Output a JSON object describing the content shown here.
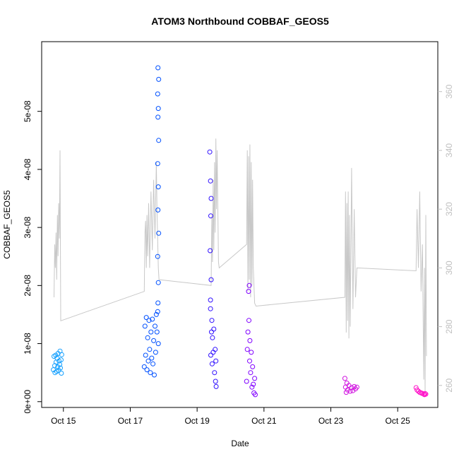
{
  "chart_data": {
    "type": "scatter",
    "title": "ATOM3 Northbound COBBAF_GEOS5",
    "xlabel": "Date",
    "ylabel": "COBBAF_GEOS5",
    "x_ticks": [
      {
        "value": 15,
        "label": "Oct 15"
      },
      {
        "value": 17,
        "label": "Oct 17"
      },
      {
        "value": 19,
        "label": "Oct 19"
      },
      {
        "value": 21,
        "label": "Oct 21"
      },
      {
        "value": 23,
        "label": "Oct 23"
      },
      {
        "value": 25,
        "label": "Oct 25"
      }
    ],
    "xlim": [
      14.35,
      26.2
    ],
    "y_ticks": [
      {
        "value": 0,
        "label": "0e+00"
      },
      {
        "value": 1e-08,
        "label": "1e-08"
      },
      {
        "value": 2e-08,
        "label": "2e-08"
      },
      {
        "value": 3e-08,
        "label": "3e-08"
      },
      {
        "value": 4e-08,
        "label": "4e-08"
      },
      {
        "value": 5e-08,
        "label": "5e-08"
      }
    ],
    "ylim": [
      -1e-09,
      6.2e-08
    ],
    "y2_ticks": [
      {
        "value": 260,
        "label": "260"
      },
      {
        "value": 280,
        "label": "280"
      },
      {
        "value": 300,
        "label": "300"
      },
      {
        "value": 320,
        "label": "320"
      },
      {
        "value": 340,
        "label": "340"
      },
      {
        "value": 360,
        "label": "360"
      }
    ],
    "y2lim": [
      252.5,
      377
    ],
    "grid": false,
    "legend": "none",
    "secondary_line_color": "#c8c8c8",
    "secondary_series": [
      [
        14.72,
        290
      ],
      [
        14.74,
        308
      ],
      [
        14.76,
        300
      ],
      [
        14.78,
        312
      ],
      [
        14.8,
        296
      ],
      [
        14.82,
        318
      ],
      [
        14.84,
        304
      ],
      [
        14.86,
        322
      ],
      [
        14.88,
        310
      ],
      [
        14.9,
        340
      ],
      [
        14.92,
        282
      ],
      [
        17.42,
        292
      ],
      [
        17.44,
        312
      ],
      [
        17.46,
        316
      ],
      [
        17.48,
        300
      ],
      [
        17.5,
        318
      ],
      [
        17.52,
        304
      ],
      [
        17.55,
        322
      ],
      [
        17.58,
        300
      ],
      [
        17.62,
        326
      ],
      [
        17.66,
        306
      ],
      [
        17.7,
        330
      ],
      [
        17.74,
        310
      ],
      [
        17.78,
        336
      ],
      [
        17.8,
        320
      ],
      [
        17.84,
        300
      ],
      [
        17.86,
        296
      ],
      [
        19.42,
        294
      ],
      [
        19.44,
        318
      ],
      [
        19.46,
        302
      ],
      [
        19.48,
        330
      ],
      [
        19.5,
        306
      ],
      [
        19.52,
        336
      ],
      [
        19.54,
        312
      ],
      [
        19.56,
        344
      ],
      [
        19.58,
        320
      ],
      [
        19.6,
        340
      ],
      [
        19.64,
        302
      ],
      [
        19.66,
        300
      ],
      [
        20.48,
        308
      ],
      [
        20.5,
        340
      ],
      [
        20.52,
        292
      ],
      [
        20.54,
        338
      ],
      [
        20.56,
        296
      ],
      [
        20.58,
        342
      ],
      [
        20.6,
        290
      ],
      [
        20.62,
        336
      ],
      [
        20.64,
        294
      ],
      [
        20.66,
        330
      ],
      [
        20.68,
        300
      ],
      [
        20.72,
        288
      ],
      [
        20.76,
        287
      ],
      [
        23.42,
        290
      ],
      [
        23.44,
        326
      ],
      [
        23.46,
        278
      ],
      [
        23.48,
        322
      ],
      [
        23.5,
        282
      ],
      [
        23.52,
        326
      ],
      [
        23.54,
        276
      ],
      [
        23.56,
        318
      ],
      [
        23.58,
        280
      ],
      [
        23.62,
        334
      ],
      [
        23.66,
        286
      ],
      [
        23.7,
        320
      ],
      [
        23.74,
        290
      ],
      [
        23.78,
        300
      ],
      [
        25.55,
        299
      ],
      [
        25.58,
        320
      ],
      [
        25.62,
        300
      ],
      [
        25.66,
        326
      ],
      [
        25.7,
        292
      ],
      [
        25.74,
        308
      ],
      [
        25.78,
        262
      ],
      [
        25.8,
        300
      ],
      [
        25.82,
        258
      ],
      [
        25.84,
        318
      ],
      [
        25.86,
        270
      ]
    ],
    "series": [
      {
        "color": "#14a0ff",
        "points": [
          [
            14.7,
            5.5e-09
          ],
          [
            14.72,
            7.8e-09
          ],
          [
            14.74,
            6.2e-09
          ],
          [
            14.75,
            5e-09
          ],
          [
            14.77,
            8e-09
          ],
          [
            14.78,
            6.8e-09
          ],
          [
            14.8,
            5.2e-09
          ],
          [
            14.81,
            7.5e-09
          ],
          [
            14.83,
            6e-09
          ],
          [
            14.84,
            8.3e-09
          ],
          [
            14.86,
            5.4e-09
          ],
          [
            14.87,
            7e-09
          ],
          [
            14.89,
            6.4e-09
          ],
          [
            14.9,
            8.7e-09
          ],
          [
            14.91,
            5.8e-09
          ],
          [
            14.93,
            7.2e-09
          ],
          [
            14.94,
            4.9e-09
          ],
          [
            14.95,
            8.1e-09
          ]
        ]
      },
      {
        "color": "#0050ff",
        "points": [
          [
            17.42,
            6e-09
          ],
          [
            17.44,
            1.3e-08
          ],
          [
            17.46,
            8e-09
          ],
          [
            17.48,
            1.45e-08
          ],
          [
            17.5,
            5.5e-09
          ],
          [
            17.52,
            1.1e-08
          ],
          [
            17.54,
            7e-09
          ],
          [
            17.56,
            1.4e-08
          ],
          [
            17.58,
            9e-09
          ],
          [
            17.6,
            5e-09
          ],
          [
            17.62,
            1.2e-08
          ],
          [
            17.64,
            7.5e-09
          ],
          [
            17.66,
            1.42e-08
          ],
          [
            17.68,
            6.5e-09
          ],
          [
            17.7,
            1.05e-08
          ],
          [
            17.72,
            4.6e-09
          ],
          [
            17.74,
            1.3e-08
          ],
          [
            17.76,
            8.5e-09
          ],
          [
            17.78,
            1.5e-08
          ],
          [
            17.8,
            1.2e-08
          ],
          [
            17.82,
            1.55e-08
          ],
          [
            17.84,
            1e-08
          ],
          [
            17.83,
            1.7e-08
          ],
          [
            17.84,
            2.05e-08
          ],
          [
            17.82,
            2.5e-08
          ],
          [
            17.85,
            2.9e-08
          ],
          [
            17.83,
            3.3e-08
          ],
          [
            17.84,
            3.7e-08
          ],
          [
            17.82,
            4.1e-08
          ],
          [
            17.85,
            4.5e-08
          ],
          [
            17.83,
            4.9e-08
          ],
          [
            17.84,
            5.05e-08
          ],
          [
            17.82,
            5.3e-08
          ],
          [
            17.85,
            5.55e-08
          ],
          [
            17.83,
            5.75e-08
          ]
        ]
      },
      {
        "color": "#3010ff",
        "points": [
          [
            19.38,
            4.3e-08
          ],
          [
            19.4,
            3.8e-08
          ],
          [
            19.41,
            3.2e-08
          ],
          [
            19.39,
            2.6e-08
          ],
          [
            19.42,
            2.1e-08
          ],
          [
            19.4,
            1.6e-08
          ],
          [
            19.43,
            1.2e-08
          ],
          [
            19.41,
            8e-09
          ],
          [
            19.44,
            1.4e-08
          ],
          [
            19.45,
            6.5e-09
          ],
          [
            19.46,
            1.1e-08
          ],
          [
            19.48,
            8.5e-09
          ],
          [
            19.5,
            1.25e-08
          ],
          [
            19.52,
            5e-09
          ],
          [
            19.54,
            9e-09
          ],
          [
            19.55,
            3.5e-09
          ],
          [
            19.56,
            7e-09
          ],
          [
            19.57,
            2.6e-09
          ],
          [
            19.4,
            1.75e-08
          ],
          [
            19.42,
            3.5e-08
          ]
        ]
      },
      {
        "color": "#8000ff",
        "points": [
          [
            20.48,
            3.5e-09
          ],
          [
            20.5,
            9e-09
          ],
          [
            20.52,
            1.2e-08
          ],
          [
            20.54,
            1.9e-08
          ],
          [
            20.55,
            1.4e-08
          ],
          [
            20.56,
            2e-08
          ],
          [
            20.57,
            7e-09
          ],
          [
            20.58,
            1.05e-08
          ],
          [
            20.6,
            5e-09
          ],
          [
            20.62,
            8.5e-09
          ],
          [
            20.64,
            2.5e-09
          ],
          [
            20.66,
            6e-09
          ],
          [
            20.68,
            3e-09
          ],
          [
            20.7,
            1.5e-09
          ],
          [
            20.72,
            4e-09
          ],
          [
            20.74,
            1.2e-09
          ]
        ]
      },
      {
        "color": "#d010e0",
        "points": [
          [
            23.42,
            4e-09
          ],
          [
            23.44,
            2.5e-09
          ],
          [
            23.46,
            1.6e-09
          ],
          [
            23.48,
            3.2e-09
          ],
          [
            23.5,
            2e-09
          ],
          [
            23.54,
            2.8e-09
          ],
          [
            23.58,
            1.8e-09
          ],
          [
            23.62,
            2.4e-09
          ],
          [
            23.66,
            1.9e-09
          ],
          [
            23.7,
            2.6e-09
          ],
          [
            23.74,
            2.2e-09
          ],
          [
            23.78,
            2.5e-09
          ]
        ]
      },
      {
        "color": "#ff10c8",
        "points": [
          [
            25.55,
            2.4e-09
          ],
          [
            25.58,
            2e-09
          ],
          [
            25.62,
            1.8e-09
          ],
          [
            25.66,
            1.6e-09
          ],
          [
            25.7,
            1.5e-09
          ],
          [
            25.74,
            1.4e-09
          ],
          [
            25.78,
            1.3e-09
          ],
          [
            25.8,
            1.2e-09
          ],
          [
            25.82,
            1.4e-09
          ],
          [
            25.84,
            1.3e-09
          ]
        ]
      }
    ]
  }
}
